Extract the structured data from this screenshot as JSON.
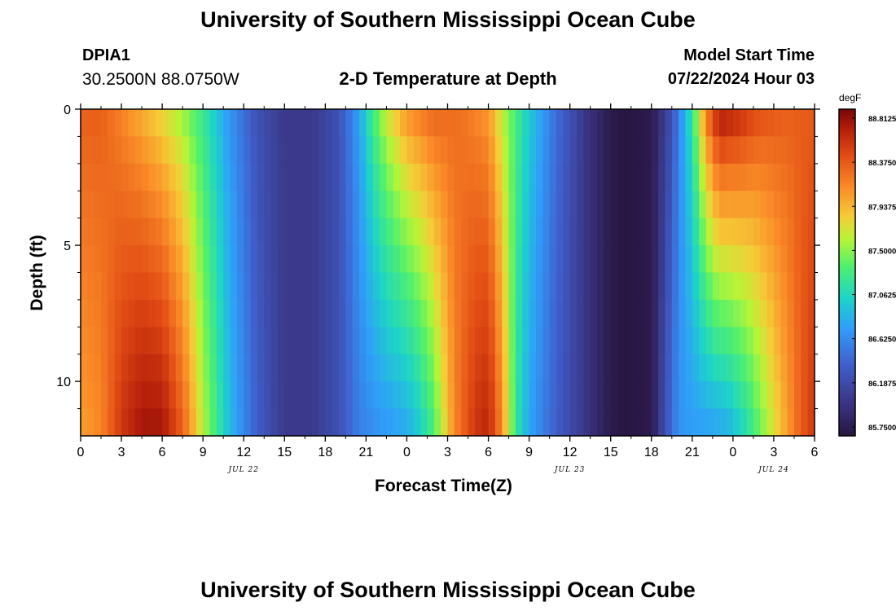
{
  "header": {
    "title": "University of Southern Mississippi Ocean Cube",
    "station": "DPIA1",
    "coords": "30.2500N  88.0750W",
    "plot_title": "2-D Temperature at Depth",
    "model_start_label": "Model Start Time",
    "model_start_value": "07/22/2024 Hour 03"
  },
  "footer": {
    "title": "University of Southern Mississippi Ocean Cube"
  },
  "chart_data": {
    "type": "heatmap",
    "title": "2-D Temperature at Depth",
    "xlabel": "Forecast Time(Z)",
    "ylabel": "Depth (ft)",
    "xlim_hours": [
      0,
      54
    ],
    "ylim_ft": [
      0,
      12
    ],
    "y_inverted": true,
    "x_tick_labels": [
      "0",
      "3",
      "6",
      "9",
      "12",
      "15",
      "18",
      "21",
      "0",
      "3",
      "6",
      "9",
      "12",
      "15",
      "18",
      "21",
      "0",
      "3",
      "6"
    ],
    "y_ticks": [
      0,
      5,
      10
    ],
    "y_tick_labels": [
      "0",
      "5",
      "10"
    ],
    "date_labels": [
      {
        "hour": 12,
        "label": "JUL 22"
      },
      {
        "hour": 36,
        "label": "JUL 23"
      },
      {
        "hour": 51,
        "label": "JUL 24"
      }
    ],
    "colorbar": {
      "unit": "degF",
      "min": 85.75,
      "max": 88.8125,
      "tick_labels": [
        "88.8125",
        "88.3750",
        "87.9375",
        "87.5000",
        "87.0625",
        "86.6250",
        "86.1875",
        "85.7500"
      ],
      "tick_values": [
        88.8125,
        88.375,
        87.9375,
        87.5,
        87.0625,
        86.625,
        86.1875,
        85.75
      ]
    },
    "n_time_steps": 108,
    "n_depth_layers": 12,
    "model_keypoints_surface": [
      [
        0,
        88.3
      ],
      [
        1.5,
        88.3
      ],
      [
        3,
        88.1
      ],
      [
        4.5,
        87.9
      ],
      [
        6,
        87.7
      ],
      [
        7.5,
        87.5
      ],
      [
        9,
        87.2
      ],
      [
        11,
        86.7
      ],
      [
        13,
        86.3
      ],
      [
        15,
        86.1
      ],
      [
        17,
        86.1
      ],
      [
        19,
        86.3
      ],
      [
        20.5,
        86.8
      ],
      [
        21.5,
        87.3
      ],
      [
        22.5,
        87.7
      ],
      [
        24,
        88.1
      ],
      [
        26,
        88.3
      ],
      [
        28,
        88.2
      ],
      [
        30,
        88.0
      ],
      [
        31,
        87.6
      ],
      [
        33,
        87.0
      ],
      [
        35,
        86.5
      ],
      [
        37,
        86.1
      ],
      [
        39,
        85.8
      ],
      [
        40,
        85.75
      ],
      [
        42,
        85.8
      ],
      [
        43.5,
        86.3
      ],
      [
        45,
        87.2
      ],
      [
        46,
        88.2
      ],
      [
        47,
        88.75
      ],
      [
        48.5,
        88.6
      ],
      [
        50,
        88.4
      ],
      [
        52,
        88.3
      ],
      [
        54,
        88.3
      ]
    ],
    "model_keypoints_bottom": [
      [
        0,
        88.0
      ],
      [
        1.5,
        88.1
      ],
      [
        3,
        88.5
      ],
      [
        4.5,
        88.7
      ],
      [
        6,
        88.7
      ],
      [
        7.5,
        88.3
      ],
      [
        9,
        87.6
      ],
      [
        11,
        86.9
      ],
      [
        13,
        86.4
      ],
      [
        15,
        86.1
      ],
      [
        17,
        86.1
      ],
      [
        19,
        86.3
      ],
      [
        20.5,
        86.6
      ],
      [
        22,
        86.7
      ],
      [
        24,
        86.8
      ],
      [
        25,
        87.0
      ],
      [
        26,
        87.3
      ],
      [
        27.5,
        88.1
      ],
      [
        29,
        88.5
      ],
      [
        30,
        88.6
      ],
      [
        31,
        88.1
      ],
      [
        32,
        87.2
      ],
      [
        33,
        86.8
      ],
      [
        35,
        86.4
      ],
      [
        37,
        86.1
      ],
      [
        39,
        85.8
      ],
      [
        40,
        85.75
      ],
      [
        42,
        85.8
      ],
      [
        43,
        86.3
      ],
      [
        44,
        86.7
      ],
      [
        45,
        86.75
      ],
      [
        46,
        86.75
      ],
      [
        47.5,
        86.8
      ],
      [
        49,
        87.1
      ],
      [
        51,
        87.7
      ],
      [
        53,
        88.3
      ],
      [
        54,
        88.5
      ]
    ]
  }
}
